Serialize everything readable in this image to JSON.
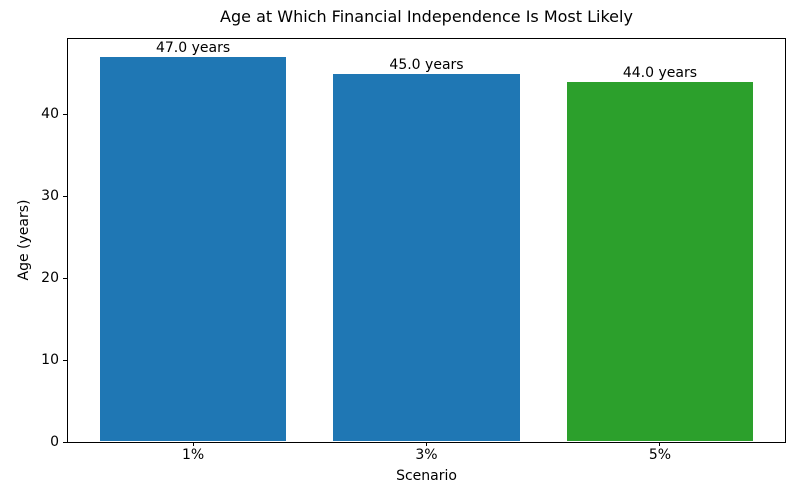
{
  "chart_data": {
    "type": "bar",
    "title": "Age at Which Financial Independence Is Most Likely",
    "xlabel": "Scenario",
    "ylabel": "Age (years)",
    "categories": [
      "1%",
      "3%",
      "5%"
    ],
    "values": [
      47.0,
      45.0,
      44.0
    ],
    "bar_labels": [
      "47.0 years",
      "45.0 years",
      "44.0 years"
    ],
    "bar_colors": [
      "#1f77b4",
      "#1f77b4",
      "#2ca02c"
    ],
    "yticks": [
      0,
      10,
      20,
      30,
      40
    ],
    "ylim": [
      0,
      49.35
    ],
    "grid": false,
    "legend": "none",
    "axis_color": "#000000",
    "text_color": "#000000",
    "background_color": "#ffffff"
  }
}
